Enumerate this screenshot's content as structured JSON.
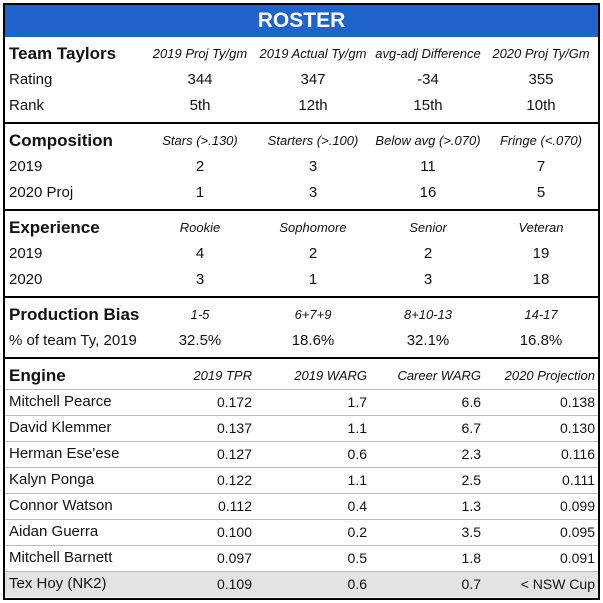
{
  "title": "ROSTER",
  "sections": [
    {
      "title": "Team Taylors",
      "columns": [
        "2019 Proj Ty/gm",
        "2019 Actual Ty/gm",
        "avg-adj Difference",
        "2020 Proj Ty/Gm"
      ],
      "rows": [
        {
          "label": "Rating",
          "cells": [
            "344",
            "347",
            "-34",
            "355"
          ]
        },
        {
          "label": "Rank",
          "cells": [
            "5th",
            "12th",
            "15th",
            "10th"
          ]
        }
      ]
    },
    {
      "title": "Composition",
      "columns": [
        "Stars (>.130)",
        "Starters (>.100)",
        "Below avg (>.070)",
        "Fringe (<.070)"
      ],
      "rows": [
        {
          "label": "2019",
          "cells": [
            "2",
            "3",
            "11",
            "7"
          ]
        },
        {
          "label": "2020 Proj",
          "cells": [
            "1",
            "3",
            "16",
            "5"
          ]
        }
      ]
    },
    {
      "title": "Experience",
      "columns": [
        "Rookie",
        "Sophomore",
        "Senior",
        "Veteran"
      ],
      "rows": [
        {
          "label": "2019",
          "cells": [
            "4",
            "2",
            "2",
            "19"
          ]
        },
        {
          "label": "2020",
          "cells": [
            "3",
            "1",
            "3",
            "18"
          ]
        }
      ]
    },
    {
      "title": "Production Bias",
      "columns": [
        "1-5",
        "6+7+9",
        "8+10-13",
        "14-17"
      ],
      "rows": [
        {
          "label": "% of team Ty, 2019",
          "cells": [
            "32.5%",
            "18.6%",
            "32.1%",
            "16.8%"
          ]
        }
      ]
    },
    {
      "title": "Engine",
      "columns": [
        "2019 TPR",
        "2019 WARG",
        "Career WARG",
        "2020 Projection"
      ],
      "rows": [
        {
          "label": "Mitchell Pearce",
          "cells": [
            "0.172",
            "1.7",
            "6.6",
            "0.138"
          ]
        },
        {
          "label": "David Klemmer",
          "cells": [
            "0.137",
            "1.1",
            "6.7",
            "0.130"
          ]
        },
        {
          "label": "Herman Ese'ese",
          "cells": [
            "0.127",
            "0.6",
            "2.3",
            "0.116"
          ]
        },
        {
          "label": "Kalyn Ponga",
          "cells": [
            "0.122",
            "1.1",
            "2.5",
            "0.111"
          ]
        },
        {
          "label": "Connor Watson",
          "cells": [
            "0.112",
            "0.4",
            "1.3",
            "0.099"
          ]
        },
        {
          "label": "Aidan Guerra",
          "cells": [
            "0.100",
            "0.2",
            "3.5",
            "0.095"
          ]
        },
        {
          "label": "Mitchell Barnett",
          "cells": [
            "0.097",
            "0.5",
            "1.8",
            "0.091"
          ]
        },
        {
          "label": "Tex Hoy (NK2)",
          "cells": [
            "0.109",
            "0.6",
            "0.7",
            "< NSW Cup"
          ]
        }
      ]
    }
  ]
}
